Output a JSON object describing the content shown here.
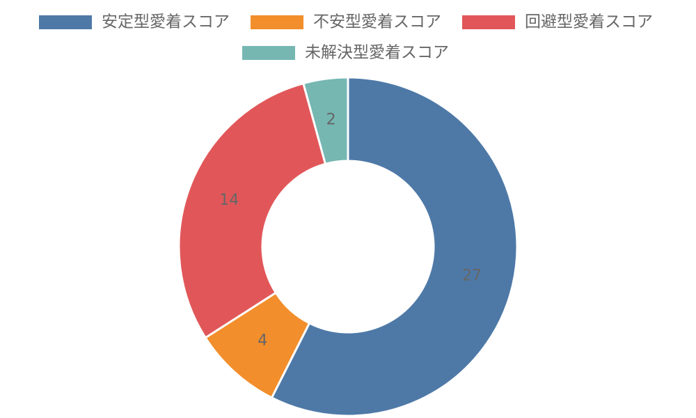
{
  "chart_data": {
    "type": "pie",
    "variant": "doughnut",
    "title": "",
    "categories": [
      "安定型愛着スコア",
      "不安型愛着スコア",
      "回避型愛着スコア",
      "未解決型愛着スコア"
    ],
    "values": [
      27,
      4,
      14,
      2
    ],
    "colors": [
      "#4e79a7",
      "#f28e2b",
      "#e15759",
      "#76b7b2"
    ],
    "legend_position": "top",
    "data_labels": true
  }
}
